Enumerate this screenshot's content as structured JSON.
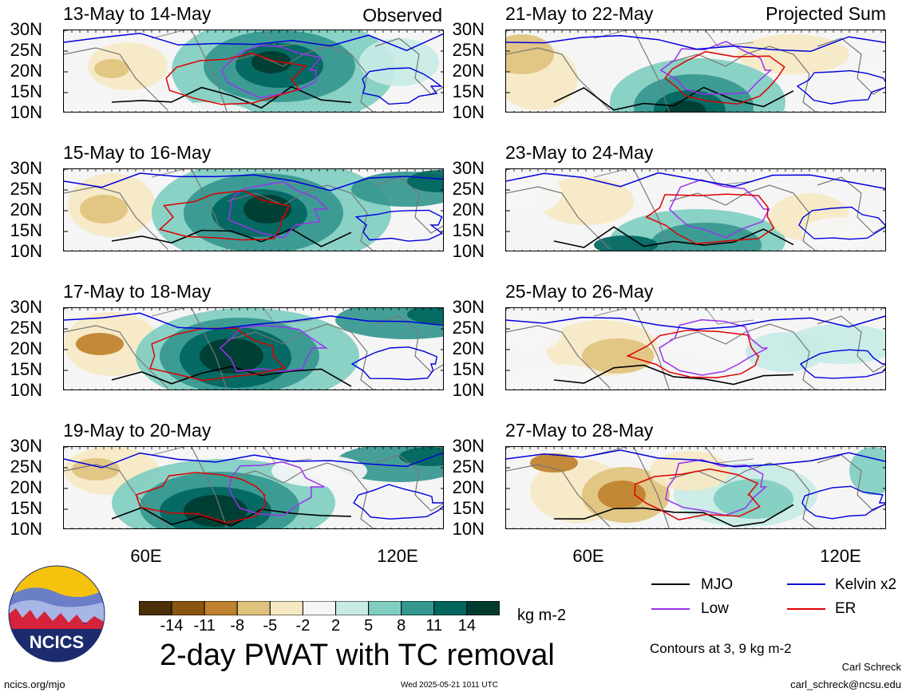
{
  "left_column_note": "Observed",
  "right_column_note": "Projected Sum",
  "panels": [
    {
      "title": "13-May to 14-May"
    },
    {
      "title": "15-May to 16-May"
    },
    {
      "title": "17-May to 18-May"
    },
    {
      "title": "19-May to 20-May"
    },
    {
      "title": "21-May to 22-May"
    },
    {
      "title": "23-May to 24-May"
    },
    {
      "title": "25-May to 26-May"
    },
    {
      "title": "27-May to 28-May"
    }
  ],
  "lat_labels": [
    "30N",
    "25N",
    "20N",
    "15N",
    "10N"
  ],
  "lon_labels": [
    "60E",
    "120E"
  ],
  "colorbar": {
    "unit": "kg m-2",
    "ticks": [
      "-14",
      "-11",
      "-8",
      "-5",
      "-2",
      "2",
      "5",
      "8",
      "11",
      "14"
    ],
    "colors": [
      "#4a2f08",
      "#8a5511",
      "#bf812d",
      "#dfc27d",
      "#f6e8c3",
      "#f5f5f5",
      "#c7eae5",
      "#80cdc1",
      "#35978f",
      "#01665e",
      "#003c30"
    ]
  },
  "legend": {
    "items": [
      {
        "label": "MJO",
        "color": "#000000"
      },
      {
        "label": "Kelvin x2",
        "color": "#0000dd"
      },
      {
        "label": "Low",
        "color": "#9933ee"
      },
      {
        "label": "ER",
        "color": "#dd0000"
      }
    ],
    "contours_note": "Contours at 3, 9 kg m-2"
  },
  "main_title": "2-day PWAT with TC removal",
  "logo_text": "NCICS",
  "site": "ncics.org/mjo",
  "timestamp": "Wed 2025-05-21 1011 UTC",
  "author": "Carl Schreck",
  "email": "carl_schreck@ncsu.edu"
}
